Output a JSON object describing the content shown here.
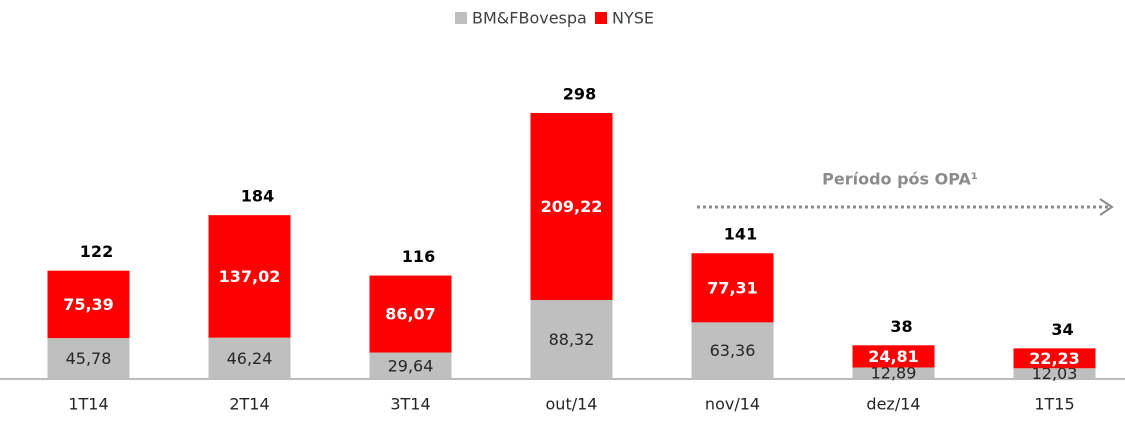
{
  "chart_data": {
    "type": "stacked_bar",
    "categories": [
      "1T14",
      "2T14",
      "3T14",
      "out/14",
      "nov/14",
      "dez/14",
      "1T15"
    ],
    "series": [
      {
        "name": "BM&FBovespa",
        "color": "#bfbfbf",
        "values": [
          45.78,
          46.24,
          29.64,
          88.32,
          63.36,
          12.89,
          12.03
        ],
        "value_labels": [
          "45,78",
          "46,24",
          "29,64",
          "88,32",
          "63,36",
          "12,89",
          "12,03"
        ]
      },
      {
        "name": "NYSE",
        "color": "#ff0000",
        "values": [
          75.39,
          137.02,
          86.07,
          209.22,
          77.31,
          24.81,
          22.23
        ],
        "value_labels": [
          "75,39",
          "137,02",
          "86,07",
          "209,22",
          "77,31",
          "24,81",
          "22,23"
        ]
      }
    ],
    "totals": [
      122,
      184,
      116,
      298,
      141,
      38,
      34
    ],
    "annotation": "Período pós OPA¹",
    "legend": "top"
  }
}
